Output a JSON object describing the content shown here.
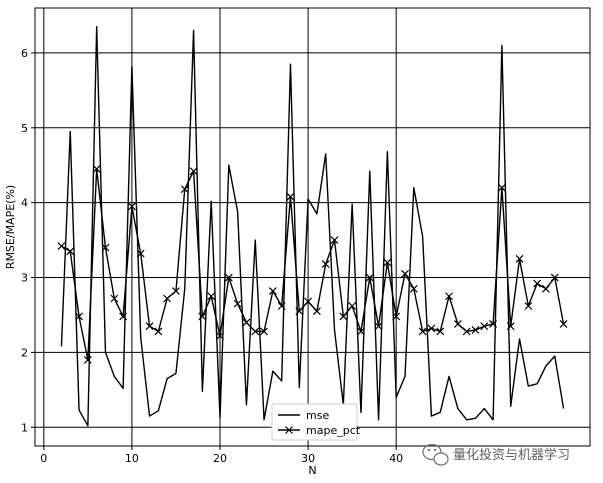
{
  "chart_data": {
    "type": "line",
    "xlabel": "N",
    "ylabel": "RMSE/MAPE(%)",
    "xlim": [
      -1,
      62
    ],
    "ylim": [
      0.75,
      6.6
    ],
    "xticks": [
      0,
      10,
      20,
      30,
      40
    ],
    "yticks": [
      1,
      2,
      3,
      4,
      5,
      6
    ],
    "grid": true,
    "legend_position": "bottom-center",
    "x": [
      2,
      3,
      4,
      5,
      6,
      7,
      8,
      9,
      10,
      11,
      12,
      13,
      14,
      15,
      16,
      17,
      18,
      19,
      20,
      21,
      22,
      23,
      24,
      25,
      26,
      27,
      28,
      29,
      30,
      31,
      32,
      33,
      34,
      35,
      36,
      37,
      38,
      39,
      40,
      41,
      42,
      43,
      44,
      45,
      46,
      47,
      48,
      49,
      50,
      51,
      52,
      53,
      54,
      55,
      56,
      57,
      58,
      59
    ],
    "series": [
      {
        "name": "mse",
        "marker": "none",
        "color": "#000000",
        "values": [
          2.08,
          4.95,
          1.23,
          1.02,
          6.35,
          2.0,
          1.68,
          1.52,
          5.82,
          2.2,
          1.15,
          1.22,
          1.65,
          1.72,
          2.85,
          6.3,
          1.48,
          4.02,
          1.13,
          4.5,
          3.88,
          1.3,
          3.5,
          1.1,
          1.75,
          1.62,
          5.85,
          1.53,
          4.05,
          3.85,
          4.65,
          2.3,
          1.3,
          3.98,
          1.2,
          4.42,
          1.1,
          4.68,
          1.4,
          1.68,
          4.2,
          3.55,
          1.15,
          1.2,
          1.68,
          1.25,
          1.1,
          1.12,
          1.25,
          1.1,
          6.1,
          1.28,
          2.18,
          1.55,
          1.58,
          1.82,
          1.95,
          1.25
        ]
      },
      {
        "name": "mape_pct",
        "marker": "x",
        "color": "#000000",
        "values": [
          3.42,
          3.35,
          2.48,
          1.9,
          4.45,
          3.4,
          2.72,
          2.48,
          3.95,
          3.32,
          2.35,
          2.28,
          2.72,
          2.82,
          4.18,
          4.42,
          2.48,
          2.75,
          2.22,
          3.0,
          2.65,
          2.4,
          2.28,
          2.28,
          2.82,
          2.62,
          4.08,
          2.55,
          2.68,
          2.55,
          3.18,
          3.5,
          2.48,
          2.62,
          2.28,
          3.0,
          2.35,
          3.2,
          2.48,
          3.05,
          2.85,
          2.28,
          2.32,
          2.28,
          2.75,
          2.38,
          2.28,
          2.3,
          2.35,
          2.38,
          4.2,
          2.35,
          3.25,
          2.62,
          2.92,
          2.85,
          3.0,
          2.38
        ]
      }
    ]
  },
  "watermark": {
    "text": "量化投资与机器学习",
    "icon": "wechat-icon"
  }
}
